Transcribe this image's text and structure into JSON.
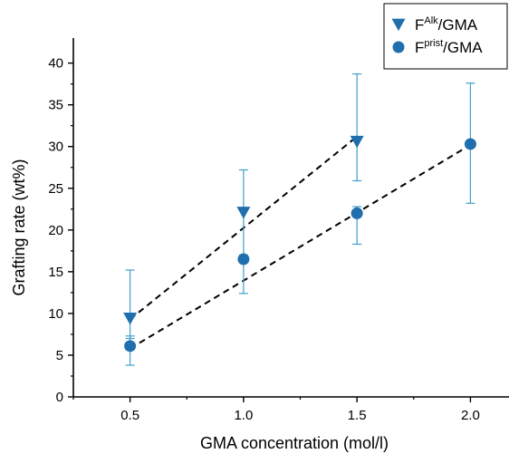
{
  "chart_data": {
    "type": "scatter",
    "title": "",
    "xlabel": "GMA concentration (mol/l)",
    "ylabel": "Grafting rate (wt%)",
    "xlim": [
      0.25,
      2.17
    ],
    "ylim": [
      0,
      43
    ],
    "x_ticks": [
      0.5,
      1.0,
      1.5,
      2.0
    ],
    "x_tick_labels": [
      "0.5",
      "1.0",
      "1.5",
      "2.0"
    ],
    "y_ticks": [
      0,
      5,
      10,
      15,
      20,
      25,
      30,
      35,
      40
    ],
    "y_tick_labels": [
      "0",
      "5",
      "10",
      "15",
      "20",
      "25",
      "30",
      "35",
      "40"
    ],
    "grid": false,
    "legend_position": "top-right",
    "series": [
      {
        "name_base": "F",
        "name_sup": "Alk",
        "name_suffix": "/GMA",
        "marker": "triangle-down",
        "color": "#1f6fae",
        "x": [
          0.5,
          1.0,
          1.5
        ],
        "y": [
          9.4,
          22.1,
          30.6
        ],
        "err_low": [
          7.0,
          16.8,
          25.9
        ],
        "err_high": [
          15.2,
          27.2,
          38.7
        ],
        "fit_line": {
          "x": [
            0.5,
            1.5
          ],
          "y": [
            9.3,
            31.2
          ]
        }
      },
      {
        "name_base": "F",
        "name_sup": "prist",
        "name_suffix": "/GMA",
        "marker": "circle",
        "color": "#1f6fae",
        "x": [
          0.5,
          1.0,
          1.5,
          2.0
        ],
        "y": [
          6.1,
          16.5,
          22.0,
          30.3
        ],
        "err_low": [
          3.8,
          12.4,
          18.3,
          23.2
        ],
        "err_high": [
          7.3,
          17.0,
          22.8,
          37.6
        ],
        "fit_line": {
          "x": [
            0.5,
            2.0
          ],
          "y": [
            5.8,
            30.2
          ]
        }
      }
    ]
  },
  "colors": {
    "marker": "#1f6fae",
    "error_bar": "#3fa0c8",
    "fit_line": "#000000",
    "axis": "#000000"
  }
}
